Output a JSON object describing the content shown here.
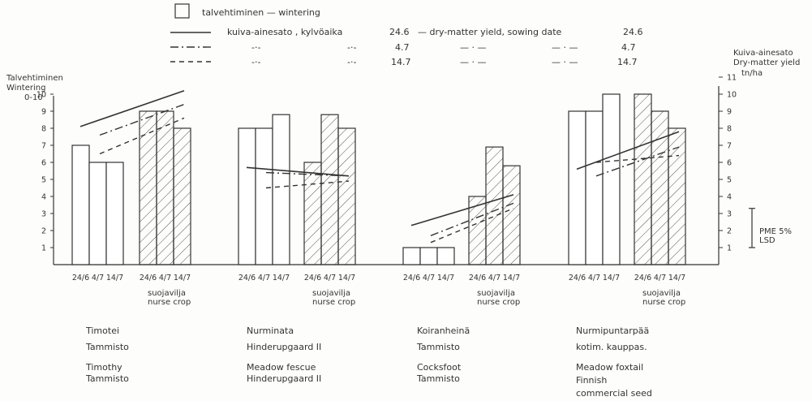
{
  "chart_data": {
    "type": "bar",
    "legend": {
      "bar_label": "talvehtiminen — wintering",
      "line_header": {
        "prefix": "kuiva-ainesato , kylvöaika",
        "date": "24.6",
        "translation": "— dry-matter yield, sowing date",
        "translation_date": "24.6"
      },
      "line_rows": [
        {
          "date": "4.7",
          "ditto1": "-·-",
          "ditto2": "-·-",
          "ditto3": "— · —",
          "ditto4": "— · —",
          "date2": "4.7"
        },
        {
          "date": "14.7",
          "ditto1": "-·-",
          "ditto2": "-·-",
          "ditto3": "— · —",
          "ditto4": "— · —",
          "date2": "14.7"
        }
      ]
    },
    "y_left_label": {
      "fi": "Talvehtiminen",
      "en": "Wintering",
      "range": "0-10"
    },
    "y_right_label": {
      "fi": "Kuiva-ainesato",
      "en": "Dry-matter yield",
      "unit": "tn/ha"
    },
    "y_left_ticks": [
      "1",
      "2",
      "3",
      "4",
      "5",
      "6",
      "7",
      "8",
      "9",
      "10"
    ],
    "y_right_ticks": [
      "1",
      "2",
      "3",
      "4",
      "5",
      "6",
      "7",
      "8",
      "9",
      "10",
      "11"
    ],
    "ylim": [
      0,
      10
    ],
    "lsd_label": {
      "fi": "PME 5%",
      "en": "LSD"
    },
    "lsd_range": [
      1,
      3.3
    ],
    "nurse_label": {
      "fi": "suojavilja",
      "en": "nurse crop"
    },
    "categories": [
      {
        "name_fi": "Timotei",
        "variety": "Tammisto",
        "name_en": "Timothy",
        "variety_en": "Tammisto",
        "dates": [
          "24/6",
          "4/7",
          "14/7"
        ],
        "plain": [
          7,
          6,
          6
        ],
        "hatched": [
          9,
          9,
          8
        ],
        "yield_lines": [
          [
            8.1,
            10.2
          ],
          [
            7.6,
            9.4
          ],
          [
            6.5,
            8.6
          ]
        ]
      },
      {
        "name_fi": "Nurminata",
        "variety": "Hinderupgaard II",
        "name_en": "Meadow fescue",
        "variety_en": "Hinderupgaard II",
        "dates": [
          "24/6",
          "4/7",
          "14/7"
        ],
        "plain": [
          8,
          8,
          8.8
        ],
        "hatched": [
          6,
          8.8,
          8
        ],
        "yield_lines": [
          [
            5.7,
            5.2
          ],
          [
            5.4,
            5.2
          ],
          [
            4.5,
            4.9
          ]
        ]
      },
      {
        "name_fi": "Koiranheinä",
        "variety": "Tammisto",
        "name_en": "Cocksfoot",
        "variety_en": "Tammisto",
        "dates": [
          "24/6",
          "4/7",
          "14/7"
        ],
        "plain": [
          1,
          1,
          1
        ],
        "hatched": [
          4,
          6.9,
          5.8
        ],
        "yield_lines": [
          [
            2.3,
            4.1
          ],
          [
            1.7,
            3.6
          ],
          [
            1.3,
            3.3
          ]
        ]
      },
      {
        "name_fi": "Nurmipuntarpää",
        "variety": "kotim. kauppas.",
        "name_en": "Meadow foxtail",
        "variety_en": "Finnish commercial seed",
        "dates": [
          "24/6",
          "4/7",
          "14/7"
        ],
        "plain": [
          9,
          9,
          10
        ],
        "hatched": [
          10,
          9,
          8
        ],
        "yield_lines": [
          [
            5.6,
            7.8
          ],
          [
            5.2,
            6.9
          ],
          [
            6.0,
            6.4
          ]
        ]
      }
    ]
  }
}
